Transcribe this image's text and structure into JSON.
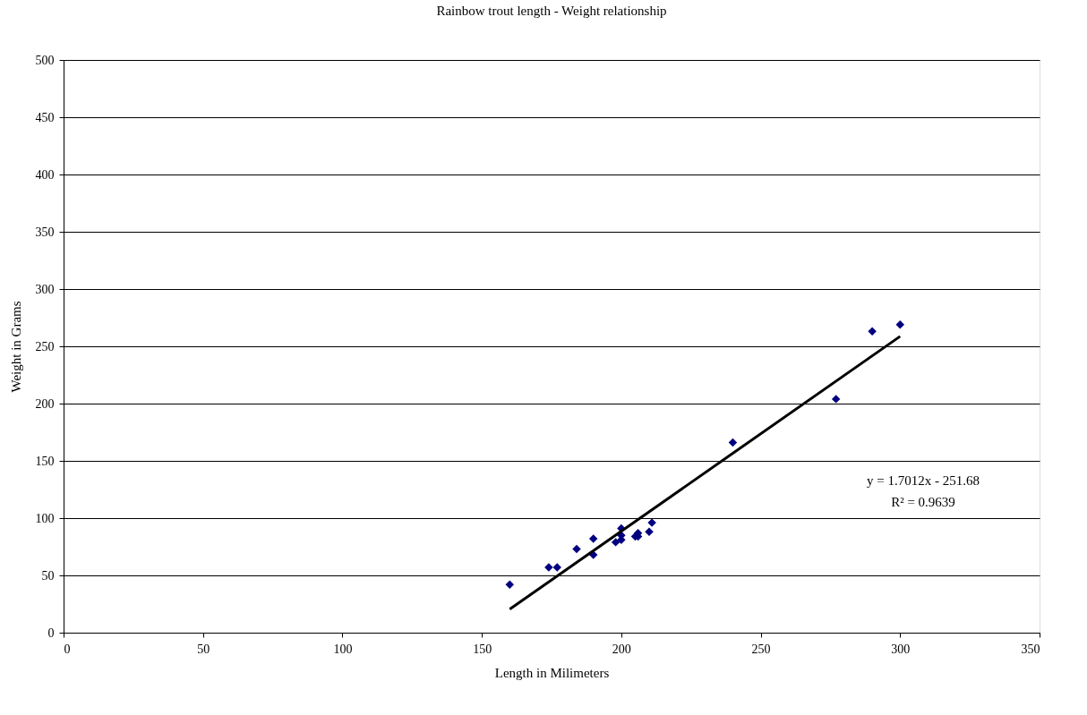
{
  "chart_data": {
    "type": "scatter",
    "title": "Rainbow trout length - Weight relationship",
    "xlabel": "Length in Milimeters",
    "ylabel": "Weight in Grams",
    "series": [
      {
        "color": "#000080",
        "marker": "diamond",
        "x": [
          160,
          174,
          177,
          184,
          190,
          190,
          198,
          200,
          200,
          200,
          205,
          206,
          206,
          210,
          211,
          240,
          277,
          290,
          300
        ],
        "values": [
          42,
          57,
          57,
          73,
          82,
          68,
          79,
          91,
          85,
          81,
          84,
          87,
          84,
          88,
          96,
          166,
          204,
          263,
          269
        ]
      },
      {
        "type": "line",
        "color": "#000000",
        "x": [
          160,
          300
        ],
        "values": [
          20.5,
          258.7
        ]
      }
    ],
    "annotations": [
      "y = 1.7012x - 251.68",
      "R² = 0.9639"
    ],
    "xlim": [
      0,
      350
    ],
    "xticks": [
      0,
      50,
      100,
      150,
      200,
      250,
      300,
      350
    ],
    "ylim": [
      0,
      500
    ],
    "yticks": [
      0,
      50,
      100,
      150,
      200,
      250,
      300,
      350,
      400,
      450,
      500
    ],
    "grid": "y"
  }
}
